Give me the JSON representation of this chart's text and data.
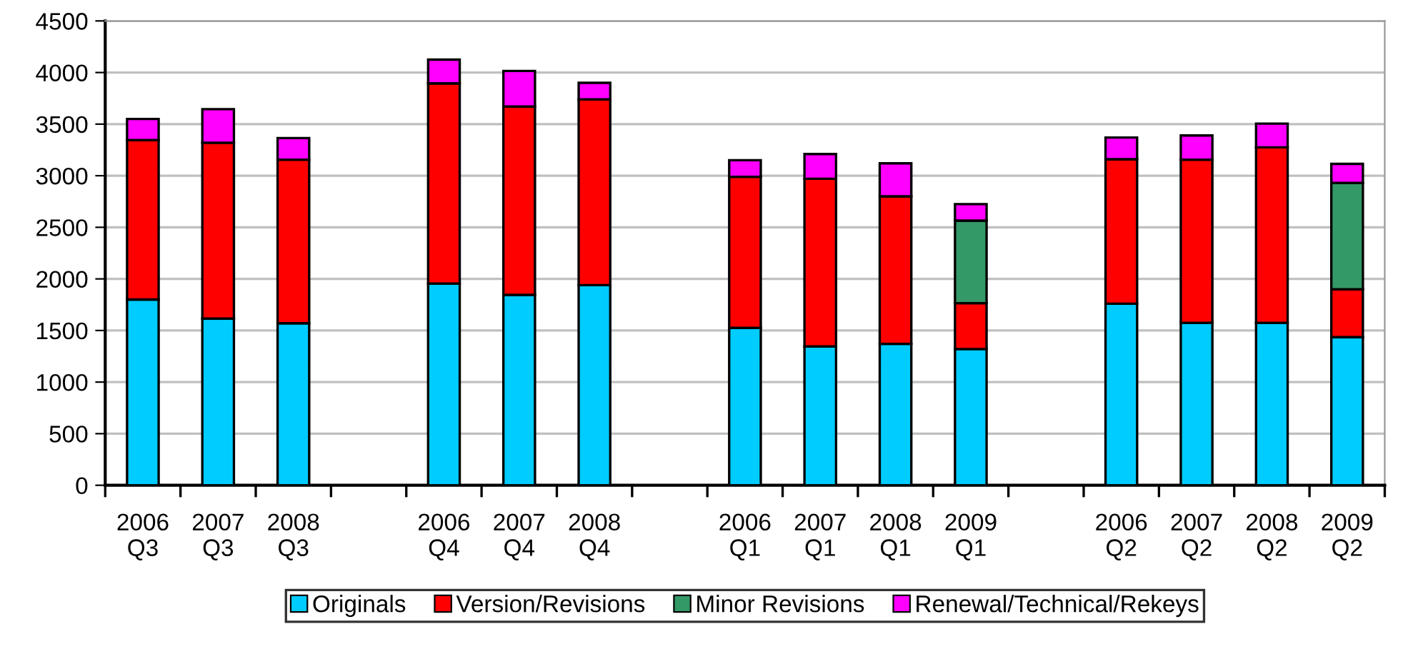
{
  "chart_data": {
    "type": "bar",
    "stacked": true,
    "categories": [
      "2006\nQ3",
      "2007\nQ3",
      "2008\nQ3",
      null,
      "2006\nQ4",
      "2007\nQ4",
      "2008\nQ4",
      null,
      "2006\nQ1",
      "2007\nQ1",
      "2008\nQ1",
      "2009\nQ1",
      null,
      "2006\nQ2",
      "2007\nQ2",
      "2008\nQ2",
      "2009\nQ2"
    ],
    "series": [
      {
        "name": "Originals",
        "color": "#00ccff",
        "values": [
          1800,
          1615,
          1570,
          null,
          1955,
          1845,
          1940,
          null,
          1525,
          1345,
          1370,
          1320,
          null,
          1760,
          1575,
          1575,
          1435
        ]
      },
      {
        "name": "Version/Revisions",
        "color": "#ff0000",
        "values": [
          1545,
          1705,
          1585,
          null,
          1940,
          1825,
          1800,
          null,
          1465,
          1625,
          1430,
          445,
          null,
          1400,
          1580,
          1700,
          465
        ]
      },
      {
        "name": "Minor Revisions",
        "color": "#339966",
        "values": [
          null,
          null,
          null,
          null,
          null,
          null,
          null,
          null,
          null,
          null,
          null,
          800,
          null,
          null,
          null,
          null,
          1030
        ]
      },
      {
        "name": "Renewal/Technical/Rekeys",
        "color": "#ff00ff",
        "values": [
          205,
          325,
          210,
          null,
          230,
          345,
          160,
          null,
          160,
          240,
          320,
          160,
          null,
          210,
          235,
          230,
          185
        ]
      }
    ],
    "ylim": [
      0,
      4500
    ],
    "yticks": [
      0,
      500,
      1000,
      1500,
      2000,
      2500,
      3000,
      3500,
      4000,
      4500
    ],
    "grid": "y",
    "legend": "bottom"
  }
}
